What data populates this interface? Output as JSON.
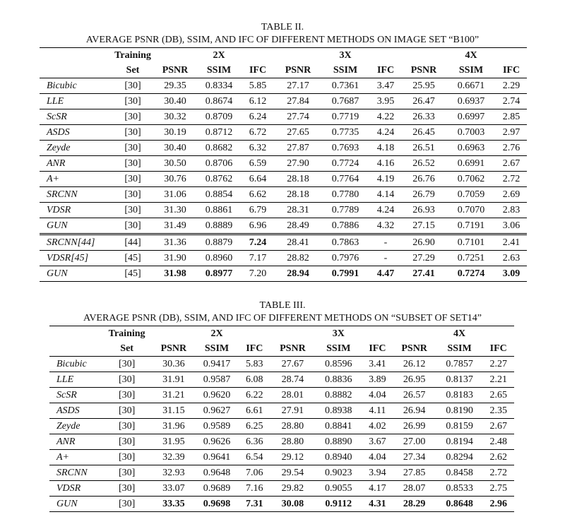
{
  "table2": {
    "label": "TABLE II.",
    "caption": "AVERAGE PSNR (DB), SSIM, AND IFC OF DIFFERENT METHODS ON IMAGE SET “B100”",
    "header": {
      "training": "Training",
      "set": "Set",
      "scales": [
        "2X",
        "3X",
        "4X"
      ],
      "metrics": [
        "PSNR",
        "SSIM",
        "IFC"
      ]
    },
    "rows": [
      {
        "method": "Bicubic",
        "set": "[30]",
        "v": [
          "29.35",
          "0.8334",
          "5.85",
          "27.17",
          "0.7361",
          "3.47",
          "25.95",
          "0.6671",
          "2.29"
        ]
      },
      {
        "method": "LLE",
        "set": "[30]",
        "v": [
          "30.40",
          "0.8674",
          "6.12",
          "27.84",
          "0.7687",
          "3.95",
          "26.47",
          "0.6937",
          "2.74"
        ]
      },
      {
        "method": "ScSR",
        "set": "[30]",
        "v": [
          "30.32",
          "0.8709",
          "6.24",
          "27.74",
          "0.7719",
          "4.22",
          "26.33",
          "0.6997",
          "2.85"
        ]
      },
      {
        "method": "ASDS",
        "set": "[30]",
        "v": [
          "30.19",
          "0.8712",
          "6.72",
          "27.65",
          "0.7735",
          "4.24",
          "26.45",
          "0.7003",
          "2.97"
        ]
      },
      {
        "method": "Zeyde",
        "set": "[30]",
        "v": [
          "30.40",
          "0.8682",
          "6.32",
          "27.87",
          "0.7693",
          "4.18",
          "26.51",
          "0.6963",
          "2.76"
        ]
      },
      {
        "method": "ANR",
        "set": "[30]",
        "v": [
          "30.50",
          "0.8706",
          "6.59",
          "27.90",
          "0.7724",
          "4.16",
          "26.52",
          "0.6991",
          "2.67"
        ]
      },
      {
        "method": "A+",
        "set": "[30]",
        "v": [
          "30.76",
          "0.8762",
          "6.64",
          "28.18",
          "0.7764",
          "4.19",
          "26.76",
          "0.7062",
          "2.72"
        ]
      },
      {
        "method": "SRCNN",
        "set": "[30]",
        "v": [
          "31.06",
          "0.8854",
          "6.62",
          "28.18",
          "0.7780",
          "4.14",
          "26.79",
          "0.7059",
          "2.69"
        ]
      },
      {
        "method": "VDSR",
        "set": "[30]",
        "v": [
          "31.30",
          "0.8861",
          "6.79",
          "28.31",
          "0.7789",
          "4.24",
          "26.93",
          "0.7070",
          "2.83"
        ]
      },
      {
        "method": "GUN",
        "set": "[30]",
        "v": [
          "31.49",
          "0.8889",
          "6.96",
          "28.49",
          "0.7886",
          "4.32",
          "27.15",
          "0.7191",
          "3.06"
        ]
      },
      {
        "method": "SRCNN[44]",
        "set": "[44]",
        "v": [
          "31.36",
          "0.8879",
          "7.24",
          "28.41",
          "0.7863",
          "-",
          "26.90",
          "0.7101",
          "2.41"
        ]
      },
      {
        "method": "VDSR[45]",
        "set": "[45]",
        "v": [
          "31.90",
          "0.8960",
          "7.17",
          "28.82",
          "0.7976",
          "-",
          "27.29",
          "0.7251",
          "2.63"
        ]
      },
      {
        "method": "GUN",
        "set": "[45]",
        "v": [
          "31.98",
          "0.8977",
          "7.20",
          "28.94",
          "0.7991",
          "4.47",
          "27.41",
          "0.7274",
          "3.09"
        ]
      }
    ],
    "bold": [
      [
        10,
        2
      ],
      [
        12,
        0
      ],
      [
        12,
        1
      ],
      [
        12,
        3
      ],
      [
        12,
        4
      ],
      [
        12,
        5
      ],
      [
        12,
        6
      ],
      [
        12,
        7
      ],
      [
        12,
        8
      ]
    ]
  },
  "table3": {
    "label": "TABLE III.",
    "caption": "AVERAGE PSNR (DB), SSIM, AND IFC OF DIFFERENT METHODS ON “SUBSET OF SET14”",
    "header": {
      "training": "Training",
      "set": "Set",
      "scales": [
        "2X",
        "3X",
        "4X"
      ],
      "metrics": [
        "PSNR",
        "SSIM",
        "IFC"
      ]
    },
    "rows": [
      {
        "method": "Bicubic",
        "set": "[30]",
        "v": [
          "30.36",
          "0.9417",
          "5.83",
          "27.67",
          "0.8596",
          "3.41",
          "26.12",
          "0.7857",
          "2.27"
        ]
      },
      {
        "method": "LLE",
        "set": "[30]",
        "v": [
          "31.91",
          "0.9587",
          "6.08",
          "28.74",
          "0.8836",
          "3.89",
          "26.95",
          "0.8137",
          "2.21"
        ]
      },
      {
        "method": "ScSR",
        "set": "[30]",
        "v": [
          "31.21",
          "0.9620",
          "6.22",
          "28.01",
          "0.8882",
          "4.04",
          "26.57",
          "0.8183",
          "2.65"
        ]
      },
      {
        "method": "ASDS",
        "set": "[30]",
        "v": [
          "31.15",
          "0.9627",
          "6.61",
          "27.91",
          "0.8938",
          "4.11",
          "26.94",
          "0.8190",
          "2.35"
        ]
      },
      {
        "method": "Zeyde",
        "set": "[30]",
        "v": [
          "31.96",
          "0.9589",
          "6.25",
          "28.80",
          "0.8841",
          "4.02",
          "26.99",
          "0.8159",
          "2.67"
        ]
      },
      {
        "method": "ANR",
        "set": "[30]",
        "v": [
          "31.95",
          "0.9626",
          "6.36",
          "28.80",
          "0.8890",
          "3.67",
          "27.00",
          "0.8194",
          "2.48"
        ]
      },
      {
        "method": "A+",
        "set": "[30]",
        "v": [
          "32.39",
          "0.9641",
          "6.54",
          "29.12",
          "0.8940",
          "4.04",
          "27.34",
          "0.8294",
          "2.62"
        ]
      },
      {
        "method": "SRCNN",
        "set": "[30]",
        "v": [
          "32.93",
          "0.9648",
          "7.06",
          "29.54",
          "0.9023",
          "3.94",
          "27.85",
          "0.8458",
          "2.72"
        ]
      },
      {
        "method": "VDSR",
        "set": "[30]",
        "v": [
          "33.07",
          "0.9689",
          "7.16",
          "29.82",
          "0.9055",
          "4.17",
          "28.07",
          "0.8533",
          "2.75"
        ]
      },
      {
        "method": "GUN",
        "set": "[30]",
        "v": [
          "33.35",
          "0.9698",
          "7.31",
          "30.08",
          "0.9112",
          "4.31",
          "28.29",
          "0.8648",
          "2.96"
        ]
      }
    ],
    "bold": [
      [
        9,
        0
      ],
      [
        9,
        1
      ],
      [
        9,
        2
      ],
      [
        9,
        3
      ],
      [
        9,
        4
      ],
      [
        9,
        5
      ],
      [
        9,
        6
      ],
      [
        9,
        7
      ],
      [
        9,
        8
      ]
    ]
  }
}
